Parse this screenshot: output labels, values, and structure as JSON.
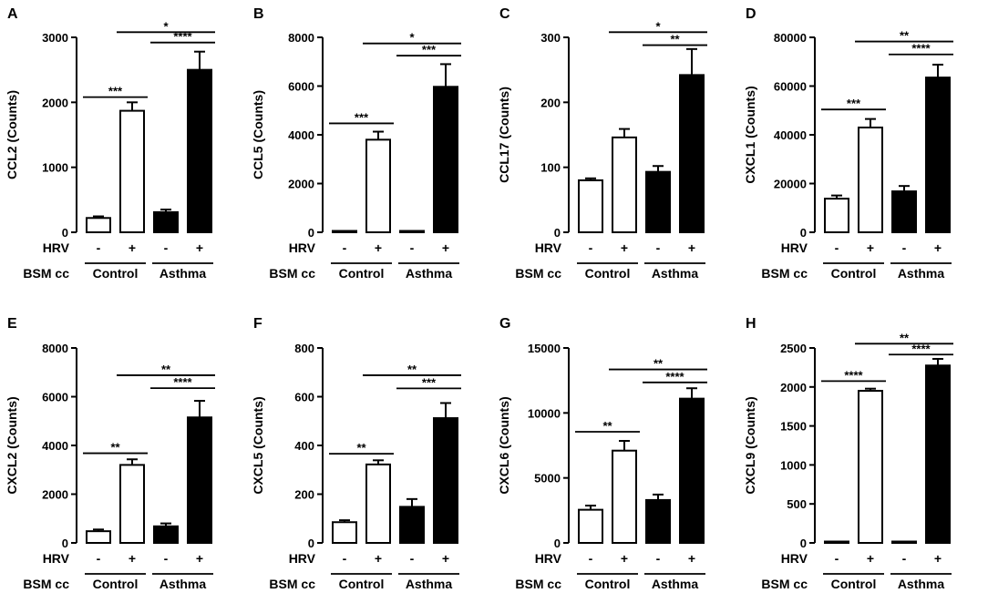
{
  "chart_data": [
    {
      "type": "bar",
      "panel": "A",
      "ylabel": "CCL2 (Counts)",
      "ylim": [
        0,
        3000
      ],
      "yticks": [
        0,
        1000,
        2000,
        3000
      ],
      "hrv_label": "HRV",
      "bsm_label": "BSM cc",
      "categories": [
        "-",
        "+",
        "-",
        "+"
      ],
      "groups": [
        "Control",
        "Asthma"
      ],
      "series": [
        {
          "values": [
            220,
            1870,
            310,
            2500
          ],
          "errors": [
            25,
            130,
            40,
            280
          ],
          "fills": [
            "#ffffff",
            "#ffffff",
            "#000000",
            "#000000"
          ]
        }
      ],
      "significance": [
        {
          "from": 0,
          "to": 1,
          "level": 2080,
          "label": "***"
        },
        {
          "from": 2,
          "to": 3,
          "level": 2920,
          "label": "****"
        },
        {
          "from": 1,
          "to": 3,
          "level": 3080,
          "label": "*"
        }
      ]
    },
    {
      "type": "bar",
      "panel": "B",
      "ylabel": "CCL5 (Counts)",
      "ylim": [
        0,
        8000
      ],
      "yticks": [
        0,
        2000,
        4000,
        6000,
        8000
      ],
      "hrv_label": "HRV",
      "bsm_label": "BSM cc",
      "categories": [
        "-",
        "+",
        "-",
        "+"
      ],
      "groups": [
        "Control",
        "Asthma"
      ],
      "series": [
        {
          "values": [
            30,
            3800,
            30,
            5970
          ],
          "errors": [
            10,
            330,
            10,
            930
          ],
          "fills": [
            "#ffffff",
            "#ffffff",
            "#000000",
            "#000000"
          ]
        }
      ],
      "significance": [
        {
          "from": 0,
          "to": 1,
          "level": 4470,
          "label": "***"
        },
        {
          "from": 2,
          "to": 3,
          "level": 7250,
          "label": "***"
        },
        {
          "from": 1,
          "to": 3,
          "level": 7750,
          "label": "*"
        }
      ]
    },
    {
      "type": "bar",
      "panel": "C",
      "ylabel": "CCL17 (Counts)",
      "ylim": [
        0,
        300
      ],
      "yticks": [
        0,
        100,
        200,
        300
      ],
      "hrv_label": "HRV",
      "bsm_label": "BSM cc",
      "categories": [
        "-",
        "+",
        "-",
        "+"
      ],
      "groups": [
        "Control",
        "Asthma"
      ],
      "series": [
        {
          "values": [
            80,
            146,
            93,
            242
          ],
          "errors": [
            3,
            13,
            9,
            40
          ],
          "fills": [
            "#ffffff",
            "#ffffff",
            "#000000",
            "#000000"
          ]
        }
      ],
      "significance": [
        {
          "from": 2,
          "to": 3,
          "level": 288,
          "label": "**"
        },
        {
          "from": 1,
          "to": 3,
          "level": 308,
          "label": "*"
        }
      ]
    },
    {
      "type": "bar",
      "panel": "D",
      "ylabel": "CXCL1 (Counts)",
      "ylim": [
        0,
        80000
      ],
      "yticks": [
        0,
        20000,
        40000,
        60000,
        80000
      ],
      "hrv_label": "HRV",
      "bsm_label": "BSM cc",
      "categories": [
        "-",
        "+",
        "-",
        "+"
      ],
      "groups": [
        "Control",
        "Asthma"
      ],
      "series": [
        {
          "values": [
            13800,
            43000,
            16800,
            63500
          ],
          "errors": [
            1300,
            3500,
            2200,
            5300
          ],
          "fills": [
            "#ffffff",
            "#ffffff",
            "#000000",
            "#000000"
          ]
        }
      ],
      "significance": [
        {
          "from": 0,
          "to": 1,
          "level": 50400,
          "label": "***"
        },
        {
          "from": 2,
          "to": 3,
          "level": 73000,
          "label": "****"
        },
        {
          "from": 1,
          "to": 3,
          "level": 78300,
          "label": "**"
        }
      ]
    },
    {
      "type": "bar",
      "panel": "E",
      "ylabel": "CXCL2 (Counts)",
      "ylim": [
        0,
        8000
      ],
      "yticks": [
        0,
        2000,
        4000,
        6000,
        8000
      ],
      "hrv_label": "HRV",
      "bsm_label": "BSM cc",
      "categories": [
        "-",
        "+",
        "-",
        "+"
      ],
      "groups": [
        "Control",
        "Asthma"
      ],
      "series": [
        {
          "values": [
            480,
            3200,
            680,
            5150
          ],
          "errors": [
            70,
            230,
            120,
            680
          ],
          "fills": [
            "#ffffff",
            "#ffffff",
            "#000000",
            "#000000"
          ]
        }
      ],
      "significance": [
        {
          "from": 0,
          "to": 1,
          "level": 3680,
          "label": "**"
        },
        {
          "from": 2,
          "to": 3,
          "level": 6350,
          "label": "****"
        },
        {
          "from": 1,
          "to": 3,
          "level": 6880,
          "label": "**"
        }
      ]
    },
    {
      "type": "bar",
      "panel": "F",
      "ylabel": "CXCL5 (Counts)",
      "ylim": [
        0,
        800
      ],
      "yticks": [
        0,
        200,
        400,
        600,
        800
      ],
      "hrv_label": "HRV",
      "bsm_label": "BSM cc",
      "categories": [
        "-",
        "+",
        "-",
        "+"
      ],
      "groups": [
        "Control",
        "Asthma"
      ],
      "series": [
        {
          "values": [
            85,
            322,
            148,
            512
          ],
          "errors": [
            8,
            17,
            32,
            62
          ],
          "fills": [
            "#ffffff",
            "#ffffff",
            "#000000",
            "#000000"
          ]
        }
      ],
      "significance": [
        {
          "from": 0,
          "to": 1,
          "level": 366,
          "label": "**"
        },
        {
          "from": 2,
          "to": 3,
          "level": 634,
          "label": "***"
        },
        {
          "from": 1,
          "to": 3,
          "level": 688,
          "label": "**"
        }
      ]
    },
    {
      "type": "bar",
      "panel": "G",
      "ylabel": "CXCL6 (Counts)",
      "ylim": [
        0,
        15000
      ],
      "yticks": [
        0,
        5000,
        10000,
        15000
      ],
      "hrv_label": "HRV",
      "bsm_label": "BSM cc",
      "categories": [
        "-",
        "+",
        "-",
        "+"
      ],
      "groups": [
        "Control",
        "Asthma"
      ],
      "series": [
        {
          "values": [
            2550,
            7100,
            3300,
            11100
          ],
          "errors": [
            320,
            750,
            420,
            800
          ],
          "fills": [
            "#ffffff",
            "#ffffff",
            "#000000",
            "#000000"
          ]
        }
      ],
      "significance": [
        {
          "from": 0,
          "to": 1,
          "level": 8550,
          "label": "**"
        },
        {
          "from": 2,
          "to": 3,
          "level": 12350,
          "label": "****"
        },
        {
          "from": 1,
          "to": 3,
          "level": 13350,
          "label": "**"
        }
      ]
    },
    {
      "type": "bar",
      "panel": "H",
      "ylabel": "CXCL9 (Counts)",
      "ylim": [
        0,
        2500
      ],
      "yticks": [
        0,
        500,
        1000,
        1500,
        2000,
        2500
      ],
      "hrv_label": "HRV",
      "bsm_label": "BSM cc",
      "categories": [
        "-",
        "+",
        "-",
        "+"
      ],
      "groups": [
        "Control",
        "Asthma"
      ],
      "series": [
        {
          "values": [
            8,
            1950,
            10,
            2275
          ],
          "errors": [
            3,
            28,
            3,
            85
          ],
          "fills": [
            "#ffffff",
            "#ffffff",
            "#000000",
            "#000000"
          ]
        }
      ],
      "significance": [
        {
          "from": 0,
          "to": 1,
          "level": 2075,
          "label": "****"
        },
        {
          "from": 2,
          "to": 3,
          "level": 2415,
          "label": "****"
        },
        {
          "from": 1,
          "to": 3,
          "level": 2555,
          "label": "**"
        }
      ]
    }
  ]
}
